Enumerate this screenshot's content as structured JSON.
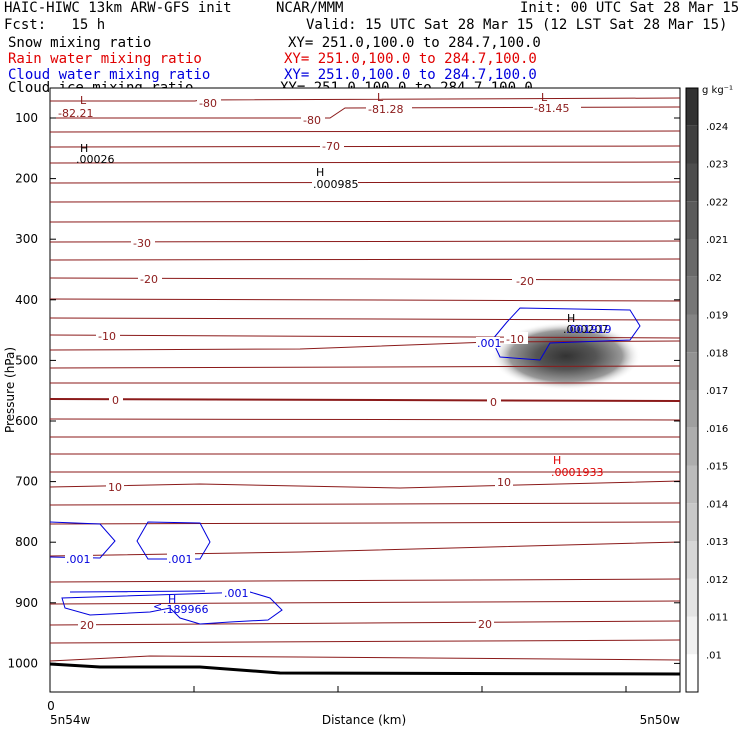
{
  "header": {
    "model": "HAIC-HIWC 13km ARW-GFS init",
    "org": "NCAR/MMM",
    "init": "Init: 00 UTC Sat 28 Mar 15",
    "fcst": "Fcst:   15 h",
    "valid": "Valid: 15 UTC Sat 28 Mar 15 (12 LST Sat 28 Mar 15)",
    "fields": [
      {
        "name": "Snow mixing ratio",
        "xy": "XY= 251.0,100.0 to 284.7,100.0",
        "color": "#000000"
      },
      {
        "name": "Rain water mixing ratio",
        "xy": "XY= 251.0,100.0 to 284.7,100.0",
        "color": "#e00000"
      },
      {
        "name": "Cloud water mixing ratio",
        "xy": "XY= 251.0,100.0 to 284.7,100.0",
        "color": "#0000dd"
      },
      {
        "name": "Cloud ice mixing ratio",
        "xy": "XY= 251.0,100.0 to 284.7,100.0",
        "color": "#000000"
      }
    ]
  },
  "chart_data": {
    "type": "contour",
    "ylabel": "Pressure (hPa)",
    "xlabel": "Distance (km)",
    "y_ticks": [
      100,
      200,
      300,
      400,
      500,
      600,
      700,
      800,
      900,
      1000
    ],
    "x_tick_label": "0",
    "x_left_label": "5n54w",
    "x_right_label": "5n50w",
    "colorbar": {
      "unit": "g kg⁻¹",
      "levels": [
        ".01",
        ".011",
        ".012",
        ".013",
        ".014",
        ".015",
        ".016",
        ".017",
        ".018",
        ".019",
        ".02",
        ".021",
        ".022",
        ".023",
        ".024"
      ]
    },
    "temperature_contour_labels": [
      "-80",
      "-81.28",
      "-81.45",
      "-82.21",
      "-70",
      "-30",
      "-20",
      "-10",
      "0",
      "10",
      "20"
    ],
    "extrema": [
      {
        "type": "L",
        "value": "-82.21",
        "color": "#8b1a1a"
      },
      {
        "type": "L",
        "value": "-81.28",
        "color": "#8b1a1a"
      },
      {
        "type": "L",
        "value": "-81.45",
        "color": "#8b1a1a"
      },
      {
        "type": "H",
        "value": ".00026",
        "color": "#000000"
      },
      {
        "type": "H",
        "value": ".000985",
        "color": "#000000"
      },
      {
        "type": "H",
        "value": ".0001933",
        "color": "#e00000"
      },
      {
        "type": "H",
        "value": ".189966",
        "color": "#0000dd"
      },
      {
        "type": "H",
        "value": ".000207",
        "color": "#000000"
      },
      {
        "type": "H",
        "value": ".001919",
        "color": "#0000dd"
      }
    ],
    "cloud_water_labels": [
      ".001",
      ".001",
      ".001",
      ".001",
      ".001"
    ]
  }
}
